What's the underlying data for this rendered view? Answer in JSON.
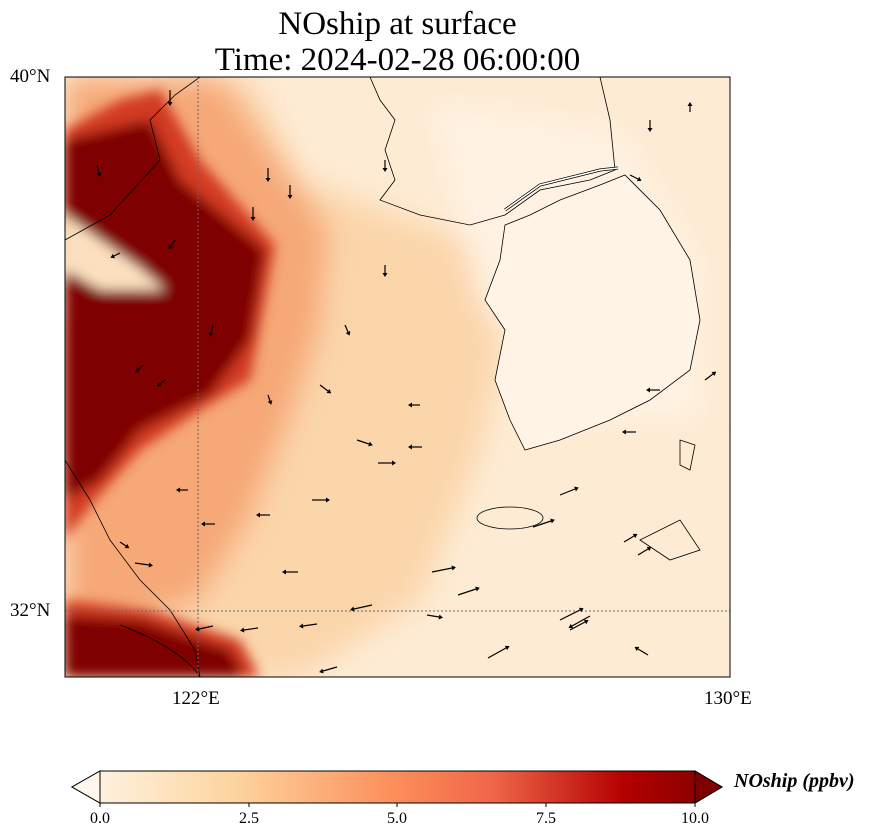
{
  "title": {
    "line1": "NOship at surface",
    "line2": "Time: 2024-02-28 06:00:00"
  },
  "map": {
    "lat_labels": [
      "40°N",
      "32°N"
    ],
    "lon_labels": [
      "122°E",
      "130°E"
    ],
    "gridlines": {
      "lat": [
        32
      ],
      "lon": [
        122
      ]
    },
    "extent": {
      "lon": [
        120,
        130
      ],
      "lat": [
        31,
        40
      ]
    }
  },
  "colorbar": {
    "label": "NOship (ppbv)",
    "ticks": [
      "0.0",
      "2.5",
      "5.0",
      "7.5",
      "10.0"
    ],
    "range": [
      0,
      10
    ],
    "extend": "both",
    "colormap": "OrRd",
    "colors": [
      "#fff7ec",
      "#fdd49e",
      "#fc8d59",
      "#d7301f",
      "#7f0000"
    ]
  }
}
